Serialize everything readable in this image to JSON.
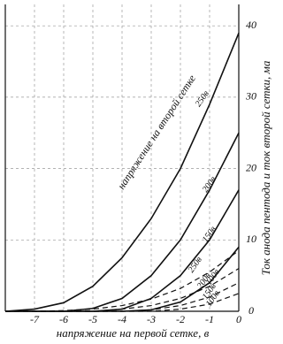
{
  "chart_data": {
    "type": "line",
    "x_label": "напряжение на первой сетке, в",
    "y_label": "Ток анода пентода и ток второй сетки, ма",
    "annotation": "напряжение на второй сетке",
    "x": [
      -8,
      -7,
      -6,
      -5,
      -4,
      -3,
      -2,
      -1,
      0
    ],
    "xlim": [
      -8,
      0
    ],
    "xticks": [
      -7,
      -6,
      -5,
      -4,
      -3,
      -2,
      -1,
      0
    ],
    "ylim": [
      0,
      43
    ],
    "yticks": [
      0,
      10,
      20,
      30,
      40
    ],
    "grid": true,
    "series": [
      {
        "name": "250в",
        "color": "#111111",
        "dashed": false,
        "values": [
          0,
          0.3,
          1.2,
          3.5,
          7.5,
          13,
          20,
          29,
          39
        ]
      },
      {
        "name": "200в",
        "color": "#111111",
        "dashed": false,
        "values": [
          0,
          0,
          0,
          0.4,
          1.8,
          5,
          10,
          17,
          25
        ]
      },
      {
        "name": "150в",
        "color": "#111111",
        "dashed": false,
        "values": [
          0,
          0,
          0,
          0,
          0.3,
          1.8,
          5,
          10,
          17
        ]
      },
      {
        "name": "100в",
        "color": "#111111",
        "dashed": false,
        "values": [
          0,
          0,
          0,
          0,
          0,
          0.2,
          1.3,
          4,
          9
        ]
      },
      {
        "name": "250в",
        "color": "#111111",
        "dashed": true,
        "values": [
          0,
          0,
          0.1,
          0.3,
          0.8,
          1.7,
          3.2,
          5.5,
          8.5
        ]
      },
      {
        "name": "200в",
        "color": "#111111",
        "dashed": true,
        "values": [
          0,
          0,
          0,
          0,
          0.3,
          0.8,
          1.8,
          3.5,
          6
        ]
      },
      {
        "name": "150в",
        "color": "#111111",
        "dashed": true,
        "values": [
          0,
          0,
          0,
          0,
          0,
          0.2,
          0.8,
          2,
          4
        ]
      },
      {
        "name": "100в",
        "color": "#111111",
        "dashed": true,
        "values": [
          0,
          0,
          0,
          0,
          0,
          0,
          0.3,
          1,
          2.5
        ]
      }
    ]
  }
}
